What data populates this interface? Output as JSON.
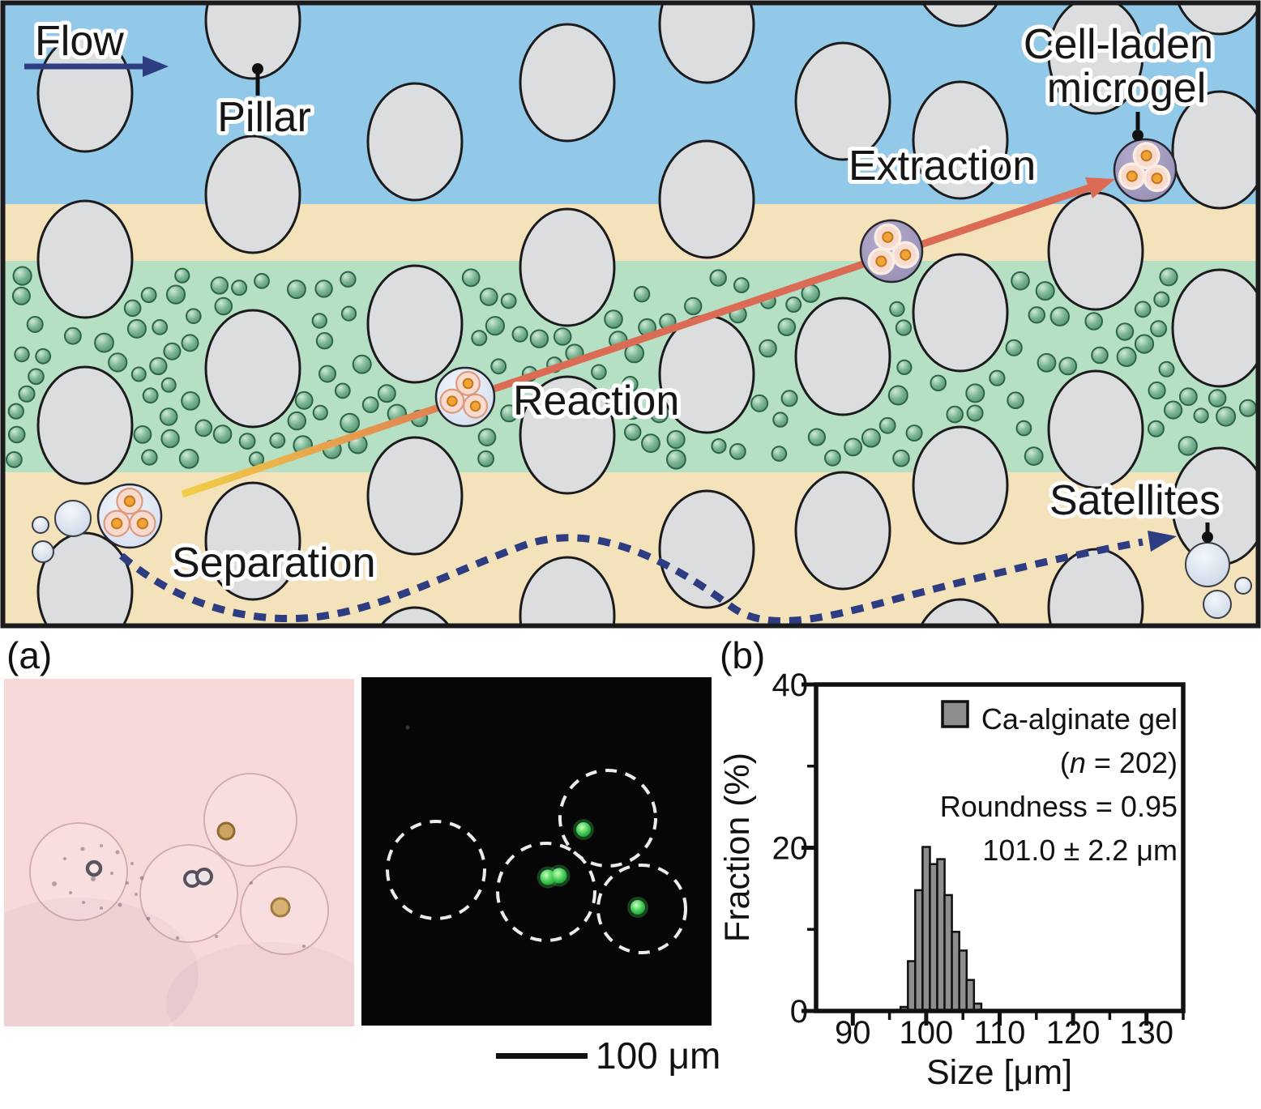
{
  "figure": {
    "schematic": {
      "labels": {
        "flow": "Flow",
        "pillar": "Pillar",
        "extraction": "Extraction",
        "cell_laden_line1": "Cell-laden",
        "cell_laden_line2": "microgel",
        "reaction": "Reaction",
        "separation": "Separation",
        "satellites": "Satellites"
      },
      "colors": {
        "band_blue": "#92c9e9",
        "band_tan": "#f3e2ba",
        "band_green": "#b5e0c4",
        "pillar_fill": "#dbdddf",
        "outline": "#1b1b1e",
        "particle_green": "#7cb795",
        "particle_edge": "#2d654a",
        "arrow_yellow": "#f2cf48",
        "arrow_red": "#dc6b55",
        "navy": "#2e3c82",
        "droplet_fill": "#dfe8f4",
        "microgel_fill": "#a29ac0",
        "cell_fill": "#f8dbce",
        "cell_edge": "#db9b80",
        "nucleus_fill": "#f2a237",
        "nucleus_edge": "#c07b1d",
        "satellite_fill": "#d4deed"
      }
    },
    "panel_a": {
      "label": "(a)",
      "scale_bar_label": "100 μm"
    },
    "panel_b": {
      "label": "(b)"
    }
  },
  "chart_data": {
    "type": "bar",
    "title": "",
    "xlabel": "Size [μm]",
    "ylabel": "Fraction (%)",
    "xlim": [
      85,
      135
    ],
    "ylim": [
      0,
      40
    ],
    "x_major_ticks": [
      90,
      100,
      110,
      120,
      130
    ],
    "x_minor_ticks": [
      95,
      105,
      115,
      125,
      135
    ],
    "y_major_ticks": [
      0,
      20,
      40
    ],
    "y_minor_ticks": [
      10,
      30
    ],
    "bin_width_um": 1,
    "bin_centers_um": [
      97,
      98,
      99,
      100,
      101,
      102,
      103,
      104,
      105,
      106,
      107
    ],
    "values_percent": [
      0.5,
      6.1,
      14.8,
      20.1,
      18.0,
      18.6,
      14.2,
      9.7,
      7.4,
      3.8,
      0.9
    ],
    "bar_color": "#8e8e8e",
    "bar_edge_color": "#111111",
    "grid": false,
    "legend": {
      "position": "top-right",
      "series_label": "Ca-alginate gel",
      "n_pre": "(",
      "n_var": "n",
      "n_post": " = 202)",
      "roundness_label": "Roundness = 0.95",
      "size_label": "101.0 ± 2.2 μm"
    }
  }
}
